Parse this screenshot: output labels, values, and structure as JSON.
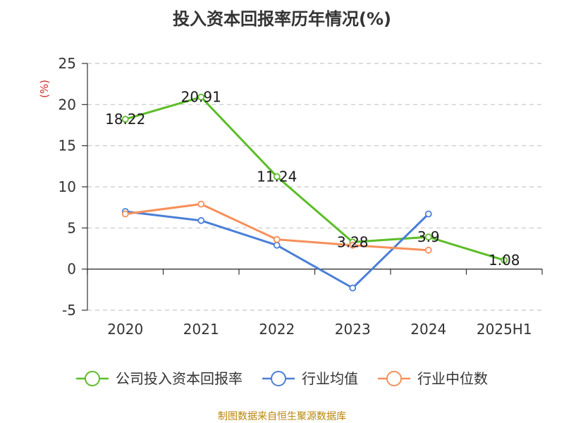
{
  "chart_data": {
    "type": "line",
    "title": "投入资本回报率历年情况(%)",
    "ylabel": "(%)",
    "categories": [
      "2020",
      "2021",
      "2022",
      "2023",
      "2024",
      "2025H1"
    ],
    "ylim": [
      -5,
      25
    ],
    "yticks": [
      -5,
      0,
      5,
      10,
      15,
      20,
      25
    ],
    "grid": true,
    "legend_position": "bottom",
    "series": [
      {
        "name": "公司投入资本回报率",
        "color": "#5cbd27",
        "values": [
          18.22,
          20.91,
          11.24,
          3.28,
          3.9,
          1.08
        ],
        "labels": [
          "18.22",
          "20.91",
          "11.24",
          "3.28",
          "3.9",
          "1.08"
        ],
        "show_labels": true
      },
      {
        "name": "行业均值",
        "color": "#4a7fd8",
        "values": [
          7.0,
          5.9,
          2.9,
          -2.3,
          6.7,
          null
        ],
        "show_labels": false
      },
      {
        "name": "行业中位数",
        "color": "#f7905a",
        "values": [
          6.7,
          7.9,
          3.6,
          2.9,
          2.3,
          null
        ],
        "show_labels": false
      }
    ],
    "source": "制图数据来自恒生聚源数据库"
  }
}
